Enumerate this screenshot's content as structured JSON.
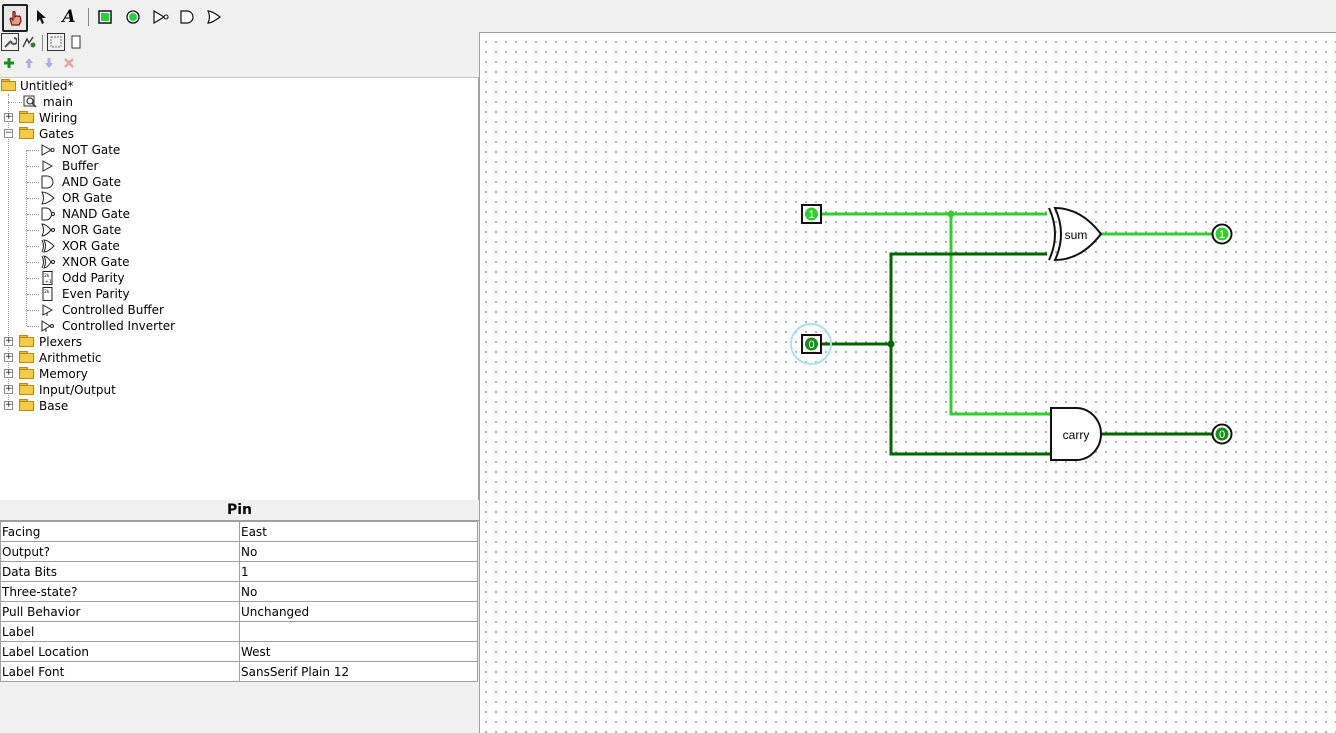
{
  "toolbar": {
    "tools": [
      "poke-tool",
      "select-tool",
      "text-tool",
      "input-pin",
      "output-pin",
      "not-gate",
      "and-gate",
      "or-gate"
    ],
    "text_tool_glyph": "A"
  },
  "project_tree": {
    "root": "Untitled*",
    "main": "main",
    "libraries": [
      {
        "name": "Wiring",
        "expanded": false
      },
      {
        "name": "Gates",
        "expanded": true
      },
      {
        "name": "Plexers",
        "expanded": false
      },
      {
        "name": "Arithmetic",
        "expanded": false
      },
      {
        "name": "Memory",
        "expanded": false
      },
      {
        "name": "Input/Output",
        "expanded": false
      },
      {
        "name": "Base",
        "expanded": false
      }
    ],
    "gates": [
      "NOT Gate",
      "Buffer",
      "AND Gate",
      "OR Gate",
      "NAND Gate",
      "NOR Gate",
      "XOR Gate",
      "XNOR Gate",
      "Odd Parity",
      "Even Parity",
      "Controlled Buffer",
      "Controlled Inverter"
    ]
  },
  "attributes": {
    "title": "Pin",
    "rows": [
      {
        "key": "Facing",
        "value": "East"
      },
      {
        "key": "Output?",
        "value": "No"
      },
      {
        "key": "Data Bits",
        "value": "1"
      },
      {
        "key": "Three-state?",
        "value": "No"
      },
      {
        "key": "Pull Behavior",
        "value": "Unchanged"
      },
      {
        "key": "Label",
        "value": ""
      },
      {
        "key": "Label Location",
        "value": "West"
      },
      {
        "key": "Label Font",
        "value": "SansSerif Plain 12"
      }
    ]
  },
  "circuit": {
    "input_a_value": "1",
    "input_b_value": "0",
    "sum_output_value": "1",
    "carry_output_value": "0",
    "xor_gate_label": "sum",
    "and_gate_label": "carry",
    "colors": {
      "wire_high": "#32cd32",
      "wire_low": "#006400",
      "pin_high": "#32cd32",
      "pin_low": "#1a8a1a",
      "selection": "#a8e0f0"
    }
  }
}
